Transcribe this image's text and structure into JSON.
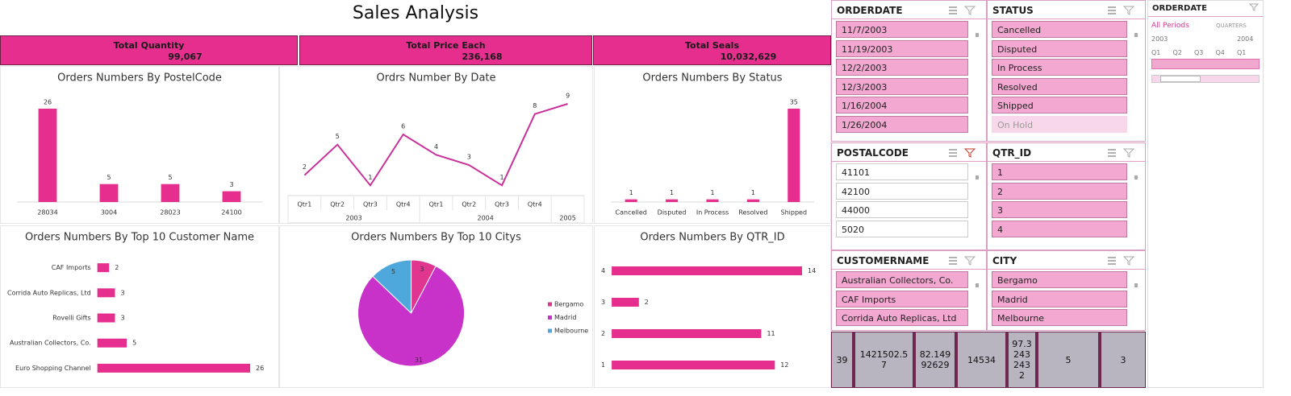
{
  "title": "Sales Analysis",
  "kpis": [
    {
      "label": "Total Quantity",
      "value": "99,067"
    },
    {
      "label": "Total Price Each",
      "value": "236,168"
    },
    {
      "label": "Total Seals",
      "value": "10,032,629"
    }
  ],
  "chart_data": [
    {
      "type": "bar",
      "title": "Orders Numbers By PostelCode",
      "categories": [
        "28034",
        "3004",
        "28023",
        "24100"
      ],
      "values": [
        26,
        5,
        5,
        3
      ],
      "color": "#e52e8e",
      "data_labels": true
    },
    {
      "type": "line",
      "title": "Ordrs Number By Date",
      "categories": [
        "Qtr1",
        "Qtr2",
        "Qtr3",
        "Qtr4",
        "Qtr1",
        "Qtr2",
        "Qtr3",
        "Qtr4",
        null
      ],
      "groups": [
        "2003",
        "2003",
        "2003",
        "2003",
        "2004",
        "2004",
        "2004",
        "2004",
        "2005"
      ],
      "values": [
        2,
        5,
        1,
        6,
        4,
        3,
        1,
        8,
        9
      ],
      "color": "#c8329a",
      "data_labels": true
    },
    {
      "type": "bar",
      "title": "Orders Numbers By Status",
      "categories": [
        "Cancelled",
        "Disputed",
        "In Process",
        "Resolved",
        "Shipped"
      ],
      "values": [
        1,
        1,
        1,
        1,
        35
      ],
      "color": "#e52e8e",
      "data_labels": true
    },
    {
      "type": "bar",
      "orientation": "horizontal",
      "title": "Orders Numbers By Top 10 Customer Name",
      "categories": [
        "CAF Imports",
        "Corrida Auto Replicas, Ltd",
        "Rovelli Gifts",
        "Australian Collectors, Co.",
        "Euro Shopping Channel"
      ],
      "values": [
        2,
        3,
        3,
        5,
        26
      ],
      "color": "#e52e8e",
      "data_labels": true
    },
    {
      "type": "pie",
      "title": "Orders Numbers By Top 10 Citys",
      "categories": [
        "Bergamo",
        "Madrid",
        "Melbourne"
      ],
      "values": [
        3,
        31,
        5
      ],
      "colors": [
        "#e0368f",
        "#c832c8",
        "#4fa8dc"
      ],
      "legend": "right",
      "data_labels": true
    },
    {
      "type": "bar",
      "orientation": "horizontal",
      "title": "Orders Numbers By QTR_ID",
      "categories": [
        "4",
        "3",
        "2",
        "1"
      ],
      "values": [
        14,
        2,
        11,
        12
      ],
      "color": "#e52e8e",
      "data_labels": true
    }
  ],
  "slicers": [
    {
      "title": "ORDERDATE",
      "items": [
        "11/7/2003",
        "11/19/2003",
        "12/2/2003",
        "12/3/2003",
        "1/16/2004",
        "1/26/2004"
      ],
      "selected": true,
      "filtered": false
    },
    {
      "title": "STATUS",
      "items": [
        "Cancelled",
        "Disputed",
        "In Process",
        "Resolved",
        "Shipped"
      ],
      "inactive_items": [
        "On Hold"
      ],
      "selected": true,
      "filtered": false
    },
    {
      "title": "POSTALCODE",
      "items": [
        "41101",
        "42100",
        "44000",
        "5020"
      ],
      "selected": false,
      "filtered": true
    },
    {
      "title": "QTR_ID",
      "items": [
        "1",
        "2",
        "3",
        "4"
      ],
      "selected": true,
      "filtered": false
    },
    {
      "title": "CUSTOMERNAME",
      "items": [
        "Australian Collectors, Co.",
        "CAF Imports",
        "Corrida Auto Replicas, Ltd"
      ],
      "selected": true,
      "filtered": false
    },
    {
      "title": "CITY",
      "items": [
        "Bergamo",
        "Madrid",
        "Melbourne"
      ],
      "selected": true,
      "filtered": false
    }
  ],
  "timeline": {
    "title": "ORDERDATE",
    "period": "All Periods",
    "level": "QUARTERS",
    "years": [
      "2003",
      "2004"
    ],
    "quarters": [
      "Q1",
      "Q2",
      "Q3",
      "Q4",
      "Q1"
    ]
  },
  "summary_row": [
    "39",
    "1421502.57",
    "82.14992629",
    "14534",
    "97.32432432",
    "5",
    "3"
  ]
}
